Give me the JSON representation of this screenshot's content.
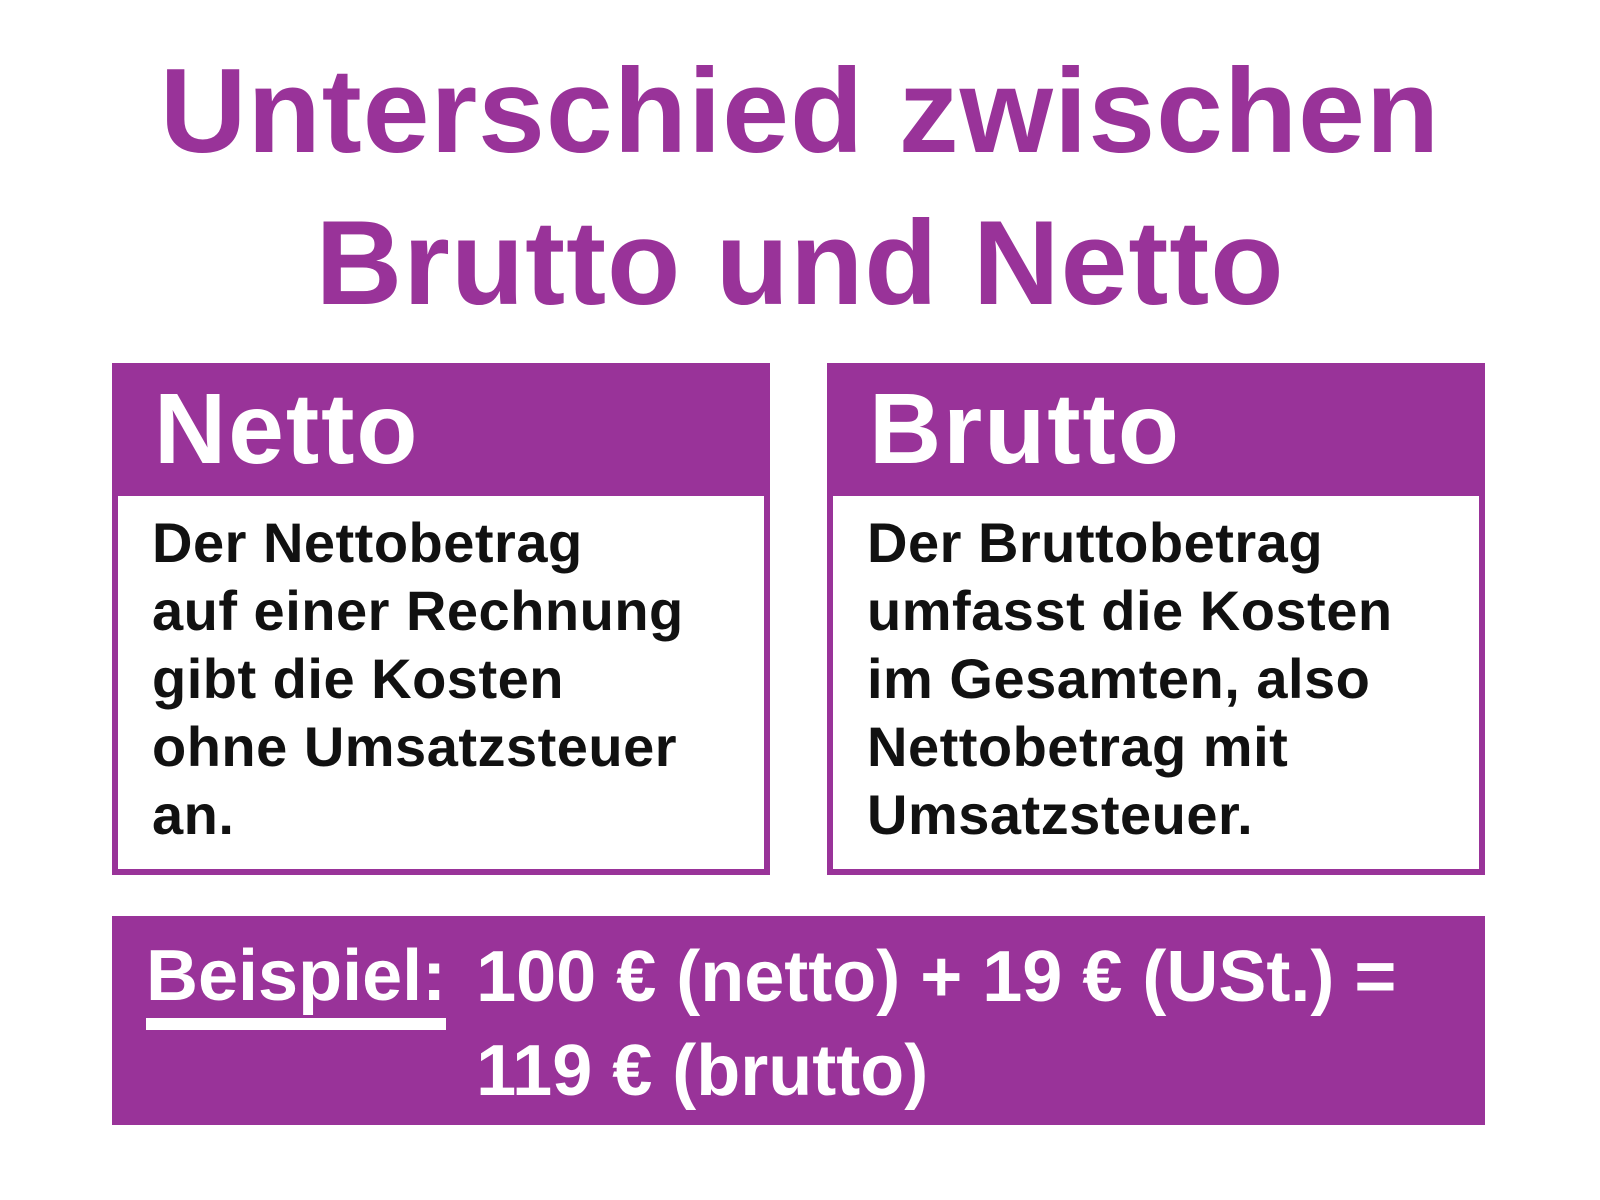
{
  "title": "Unterschied zwischen\nBrutto und Netto",
  "cards": [
    {
      "heading": "Netto",
      "body": "Der Nettobetrag\nauf einer Rechnung\ngibt die Kosten\nohne Umsatzsteuer\nan."
    },
    {
      "heading": "Brutto",
      "body": "Der Bruttobetrag\numfasst die Kosten\nim Gesamten, also\nNettobetrag mit\nUmsatzsteuer."
    }
  ],
  "example": {
    "label": "Beispiel:",
    "text": "100 € (netto) + 19 € (USt.) =\n119 € (brutto)"
  },
  "colors": {
    "purple": "#993399",
    "body_text": "#111111",
    "background": "#ffffff",
    "inverse_text": "#ffffff"
  }
}
